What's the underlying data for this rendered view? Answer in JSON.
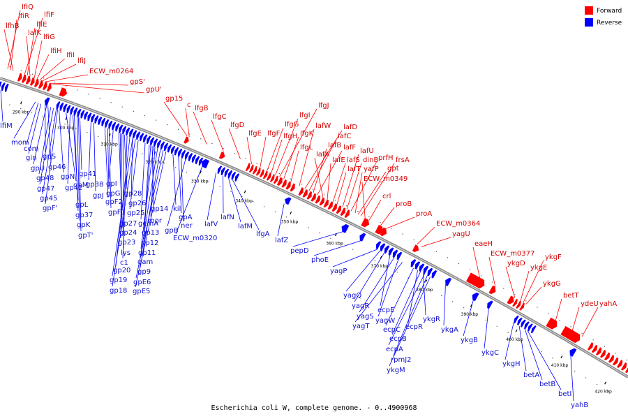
{
  "caption": "Escherichia coli W, complete genome. - 0..4900968",
  "legend": [
    {
      "label": "Forward",
      "color": "#ff0000"
    },
    {
      "label": "Reverse",
      "color": "#0000ff"
    }
  ],
  "colors": {
    "forward": "#ff0000",
    "reverse": "#0000ff",
    "backbone": "#777777"
  },
  "ticks": [
    "290 kbp",
    "300 kbp",
    "310 kbp",
    "320 kbp",
    "330 kbp",
    "340 kbp",
    "350 kbp",
    "360 kbp",
    "370 kbp",
    "380 kbp",
    "390 kbp",
    "400 kbp",
    "410 kbp",
    "420 kbp"
  ],
  "forward_labels": [
    "lfiQ",
    "lfiR",
    "lfhB",
    "lfiF",
    "lfiE",
    "lafK",
    "lfiG",
    "lfiH",
    "lfiI",
    "lfiJ",
    "ECW_m0264",
    "gpS'",
    "gpU'",
    "gp15",
    "c",
    "lfgB",
    "lfgC",
    "lfgD",
    "lfgE",
    "lfgF",
    "lfgG",
    "lfgH",
    "lfgI",
    "lfgJ",
    "lfgK",
    "lfgL",
    "lafW",
    "lafD",
    "lafC",
    "lafB",
    "lafF",
    "lafA",
    "lafE",
    "lafS",
    "lafT",
    "lafU",
    "dinB",
    "prfH",
    "yafP",
    "gpt",
    "frsA",
    "ECW_m0349",
    "crl",
    "proB",
    "proA",
    "ECW_m0364",
    "yagU",
    "eaeH",
    "ECW_m0377",
    "ykgF",
    "ykgD",
    "ykgE",
    "ykgG",
    "betT",
    "ydeU",
    "yahA"
  ],
  "reverse_labels": [
    "lfiM",
    "mom",
    "com",
    "gin",
    "gpS",
    "gpU",
    "gp46",
    "gp48",
    "gpN",
    "gp41",
    "gp47",
    "gpM",
    "gp42",
    "gp38",
    "gpI",
    "gp45",
    "gpL",
    "gpJ",
    "gpG",
    "gp28",
    "gpF'",
    "gp37",
    "gpF2",
    "gp26",
    "gpF1",
    "gpK",
    "gp25",
    "gp14",
    "mor",
    "kil",
    "gp27",
    "gemA",
    "gpA",
    "gpT'",
    "gp24",
    "gp13",
    "ner",
    "gp23",
    "gp12",
    "gpB",
    "lys",
    "gp11",
    "c1",
    "gam",
    "gp20",
    "gp9",
    "gp19",
    "gpE6",
    "gp18",
    "gpE5",
    "ECW_m0320",
    "lafV",
    "lafN",
    "lafM",
    "lfgA",
    "lafZ",
    "pepD",
    "phoE",
    "yagP",
    "yagQ",
    "yagR",
    "ecpE",
    "yagS",
    "yagW",
    "yagT",
    "ecpC",
    "ecpR",
    "ykgR",
    "ecpB",
    "ykgA",
    "ecpA",
    "ykgB",
    "rpmJ2",
    "ykgM",
    "ykgC",
    "ykgH",
    "betA",
    "betB",
    "betI",
    "yahB"
  ]
}
